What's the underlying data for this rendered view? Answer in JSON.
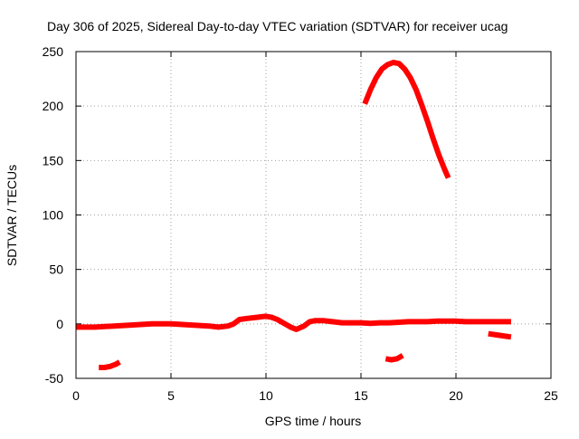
{
  "chart_data": {
    "type": "line",
    "title": "Day 306 of 2025, Sidereal Day-to-day VTEC variation (SDTVAR) for receiver ucag",
    "xlabel": "GPS time / hours",
    "ylabel": "SDTVAR / TECUs",
    "xlim": [
      0,
      25
    ],
    "ylim": [
      -50,
      250
    ],
    "xticks": [
      0,
      5,
      10,
      15,
      20,
      25
    ],
    "yticks": [
      -50,
      0,
      50,
      100,
      150,
      200,
      250
    ],
    "grid": true,
    "color": "#ff0000",
    "series": [
      {
        "name": "main-trace",
        "x": [
          0,
          0.5,
          1,
          1.5,
          2,
          2.5,
          3,
          3.5,
          4,
          4.5,
          5,
          5.5,
          6,
          6.5,
          7,
          7.5,
          8,
          8.3,
          8.6,
          9,
          9.5,
          10,
          10.3,
          10.6,
          11,
          11.3,
          11.6,
          12,
          12.3,
          12.6,
          13,
          13.5,
          14,
          14.5,
          15,
          15.5,
          16,
          16.5,
          17,
          17.5,
          18,
          18.5,
          19,
          19.5,
          20,
          20.5,
          21,
          21.5,
          22,
          22.5,
          22.9
        ],
        "y": [
          -3,
          -3,
          -3,
          -2.5,
          -2,
          -1.5,
          -1,
          -0.5,
          0,
          0,
          0,
          -0.5,
          -1,
          -1.5,
          -2,
          -3,
          -2,
          0,
          4,
          5,
          6,
          7,
          6,
          4,
          0,
          -3,
          -5,
          -2,
          2,
          3,
          3,
          2,
          1,
          1,
          1,
          0.5,
          1,
          1,
          1.5,
          2,
          2,
          2,
          2.5,
          2.5,
          2.5,
          2,
          2,
          2,
          2,
          2,
          2
        ]
      },
      {
        "name": "high-arc",
        "x": [
          15.2,
          15.5,
          15.8,
          16.1,
          16.4,
          16.7,
          17.0,
          17.3,
          17.6,
          17.9,
          18.2,
          18.5,
          18.8,
          19.1,
          19.4,
          19.6
        ],
        "y": [
          202,
          215,
          226,
          234,
          238,
          240,
          239,
          234,
          226,
          215,
          201,
          186,
          170,
          155,
          142,
          134
        ]
      },
      {
        "name": "low-segment-1",
        "x": [
          1.2,
          1.5,
          1.8,
          2.1,
          2.3
        ],
        "y": [
          -40,
          -40,
          -39,
          -37,
          -35
        ]
      },
      {
        "name": "low-segment-2",
        "x": [
          16.3,
          16.6,
          16.9,
          17.2
        ],
        "y": [
          -32,
          -33,
          -32,
          -29
        ]
      },
      {
        "name": "low-segment-3",
        "x": [
          21.7,
          22.1,
          22.5,
          22.9
        ],
        "y": [
          -9,
          -10,
          -11,
          -12
        ]
      }
    ]
  }
}
